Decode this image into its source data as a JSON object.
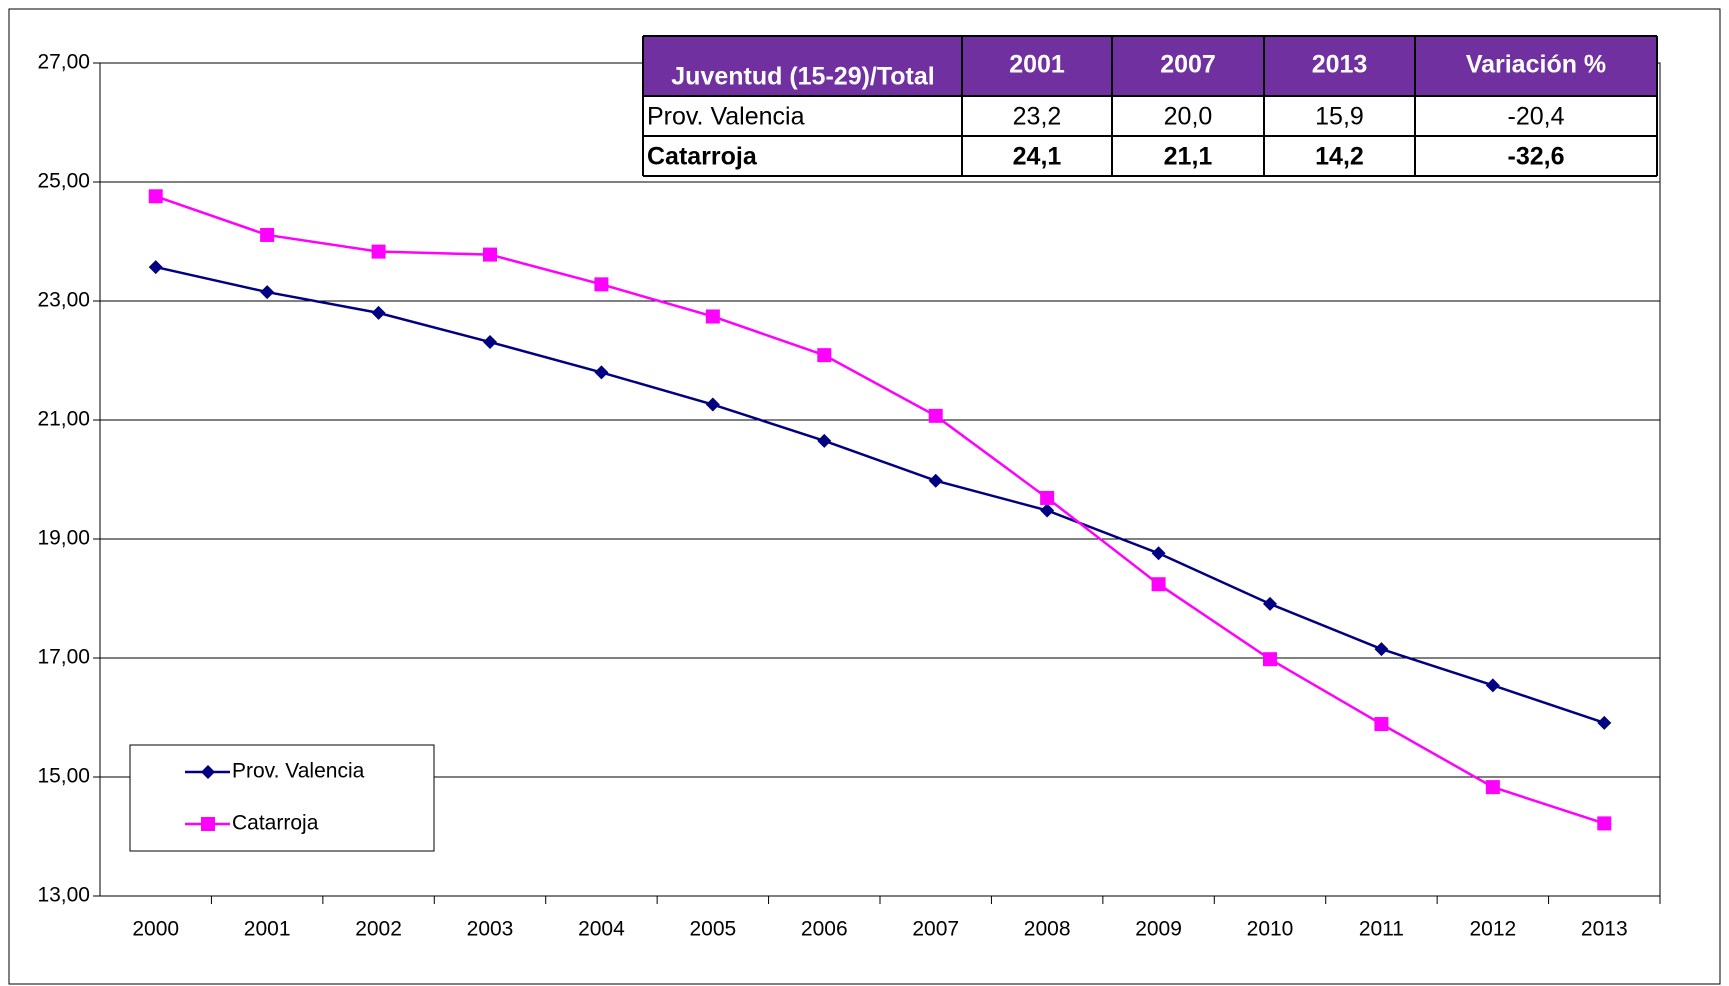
{
  "chart_data": {
    "type": "line",
    "categories": [
      "2000",
      "2001",
      "2002",
      "2003",
      "2004",
      "2005",
      "2006",
      "2007",
      "2008",
      "2009",
      "2010",
      "2011",
      "2012",
      "2013"
    ],
    "series": [
      {
        "name": "Prov. Valencia",
        "color": "#000080",
        "marker": "diamond",
        "values": [
          23.57,
          23.15,
          22.8,
          22.31,
          21.8,
          21.26,
          20.65,
          19.98,
          19.48,
          18.76,
          17.91,
          17.15,
          16.54,
          15.91
        ]
      },
      {
        "name": "Catarroja",
        "color": "#ff00ff",
        "marker": "square",
        "values": [
          24.76,
          24.11,
          23.83,
          23.78,
          23.28,
          22.74,
          22.09,
          21.07,
          19.69,
          18.24,
          16.98,
          15.89,
          14.83,
          14.22
        ]
      }
    ],
    "ylim": [
      13,
      27
    ],
    "yticks": [
      {
        "value": 13,
        "label": "13,00"
      },
      {
        "value": 15,
        "label": "15,00"
      },
      {
        "value": 17,
        "label": "17,00"
      },
      {
        "value": 19,
        "label": "19,00"
      },
      {
        "value": 21,
        "label": "21,00"
      },
      {
        "value": 23,
        "label": "23,00"
      },
      {
        "value": 25,
        "label": "25,00"
      },
      {
        "value": 27,
        "label": "27,00"
      }
    ],
    "grid": true,
    "legend": "lower left",
    "table": {
      "header": [
        "Juventud (15-29)/Total",
        "2001",
        "2007",
        "2013",
        "Variación %"
      ],
      "rows": [
        [
          "Prov. Valencia",
          "23,2",
          "20,0",
          "15,9",
          "-20,4"
        ],
        [
          "Catarroja",
          "24,1",
          "21,1",
          "14,2",
          "-32,6"
        ]
      ]
    }
  }
}
